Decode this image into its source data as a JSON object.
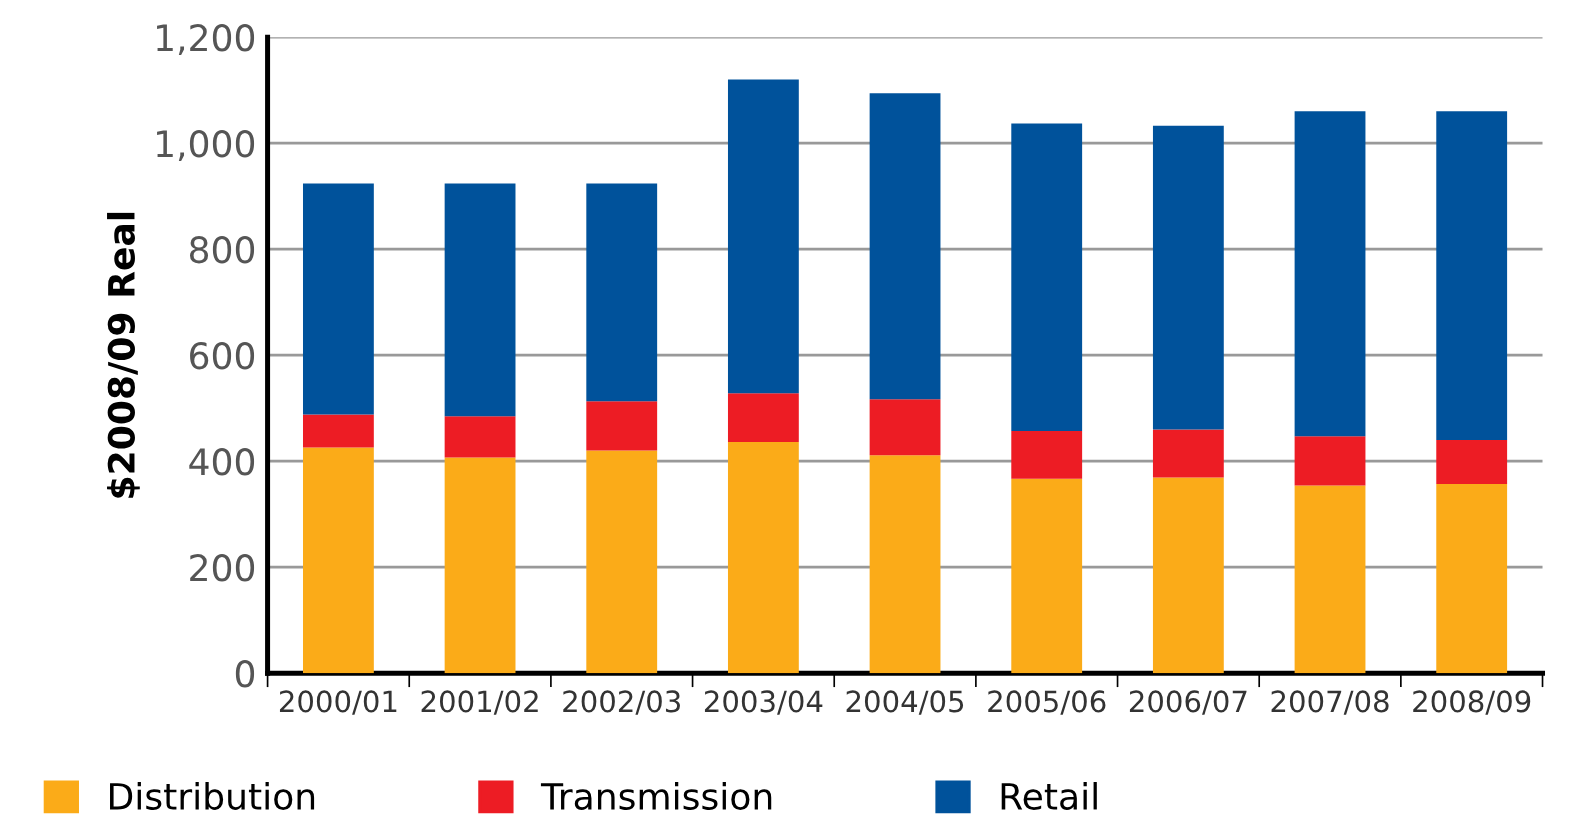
{
  "chart_data": {
    "type": "bar",
    "stacked": true,
    "ylabel": "$2008/09 Real",
    "categories": [
      "2000/01",
      "2001/02",
      "2002/03",
      "2003/04",
      "2004/05",
      "2005/06",
      "2006/07",
      "2007/08",
      "2008/09"
    ],
    "series": [
      {
        "name": "Distribution",
        "color": "#fbab18",
        "values": [
          426,
          407,
          420,
          436,
          411,
          367,
          369,
          354,
          357
        ]
      },
      {
        "name": "Transmission",
        "color": "#ed1c24",
        "values": [
          62,
          78,
          93,
          92,
          106,
          90,
          91,
          93,
          83
        ]
      },
      {
        "name": "Retail",
        "color": "#00529b",
        "values": [
          436,
          439,
          411,
          592,
          577,
          580,
          573,
          613,
          620
        ]
      }
    ],
    "ylim": [
      0,
      1200
    ],
    "yticks": [
      {
        "value": 0,
        "label": "0"
      },
      {
        "value": 200,
        "label": "200"
      },
      {
        "value": 400,
        "label": "400"
      },
      {
        "value": 600,
        "label": "600"
      },
      {
        "value": 800,
        "label": "800"
      },
      {
        "value": 1000,
        "label": "1,000"
      },
      {
        "value": 1200,
        "label": "1,200"
      }
    ],
    "grid": "y",
    "legend": "bottom"
  }
}
